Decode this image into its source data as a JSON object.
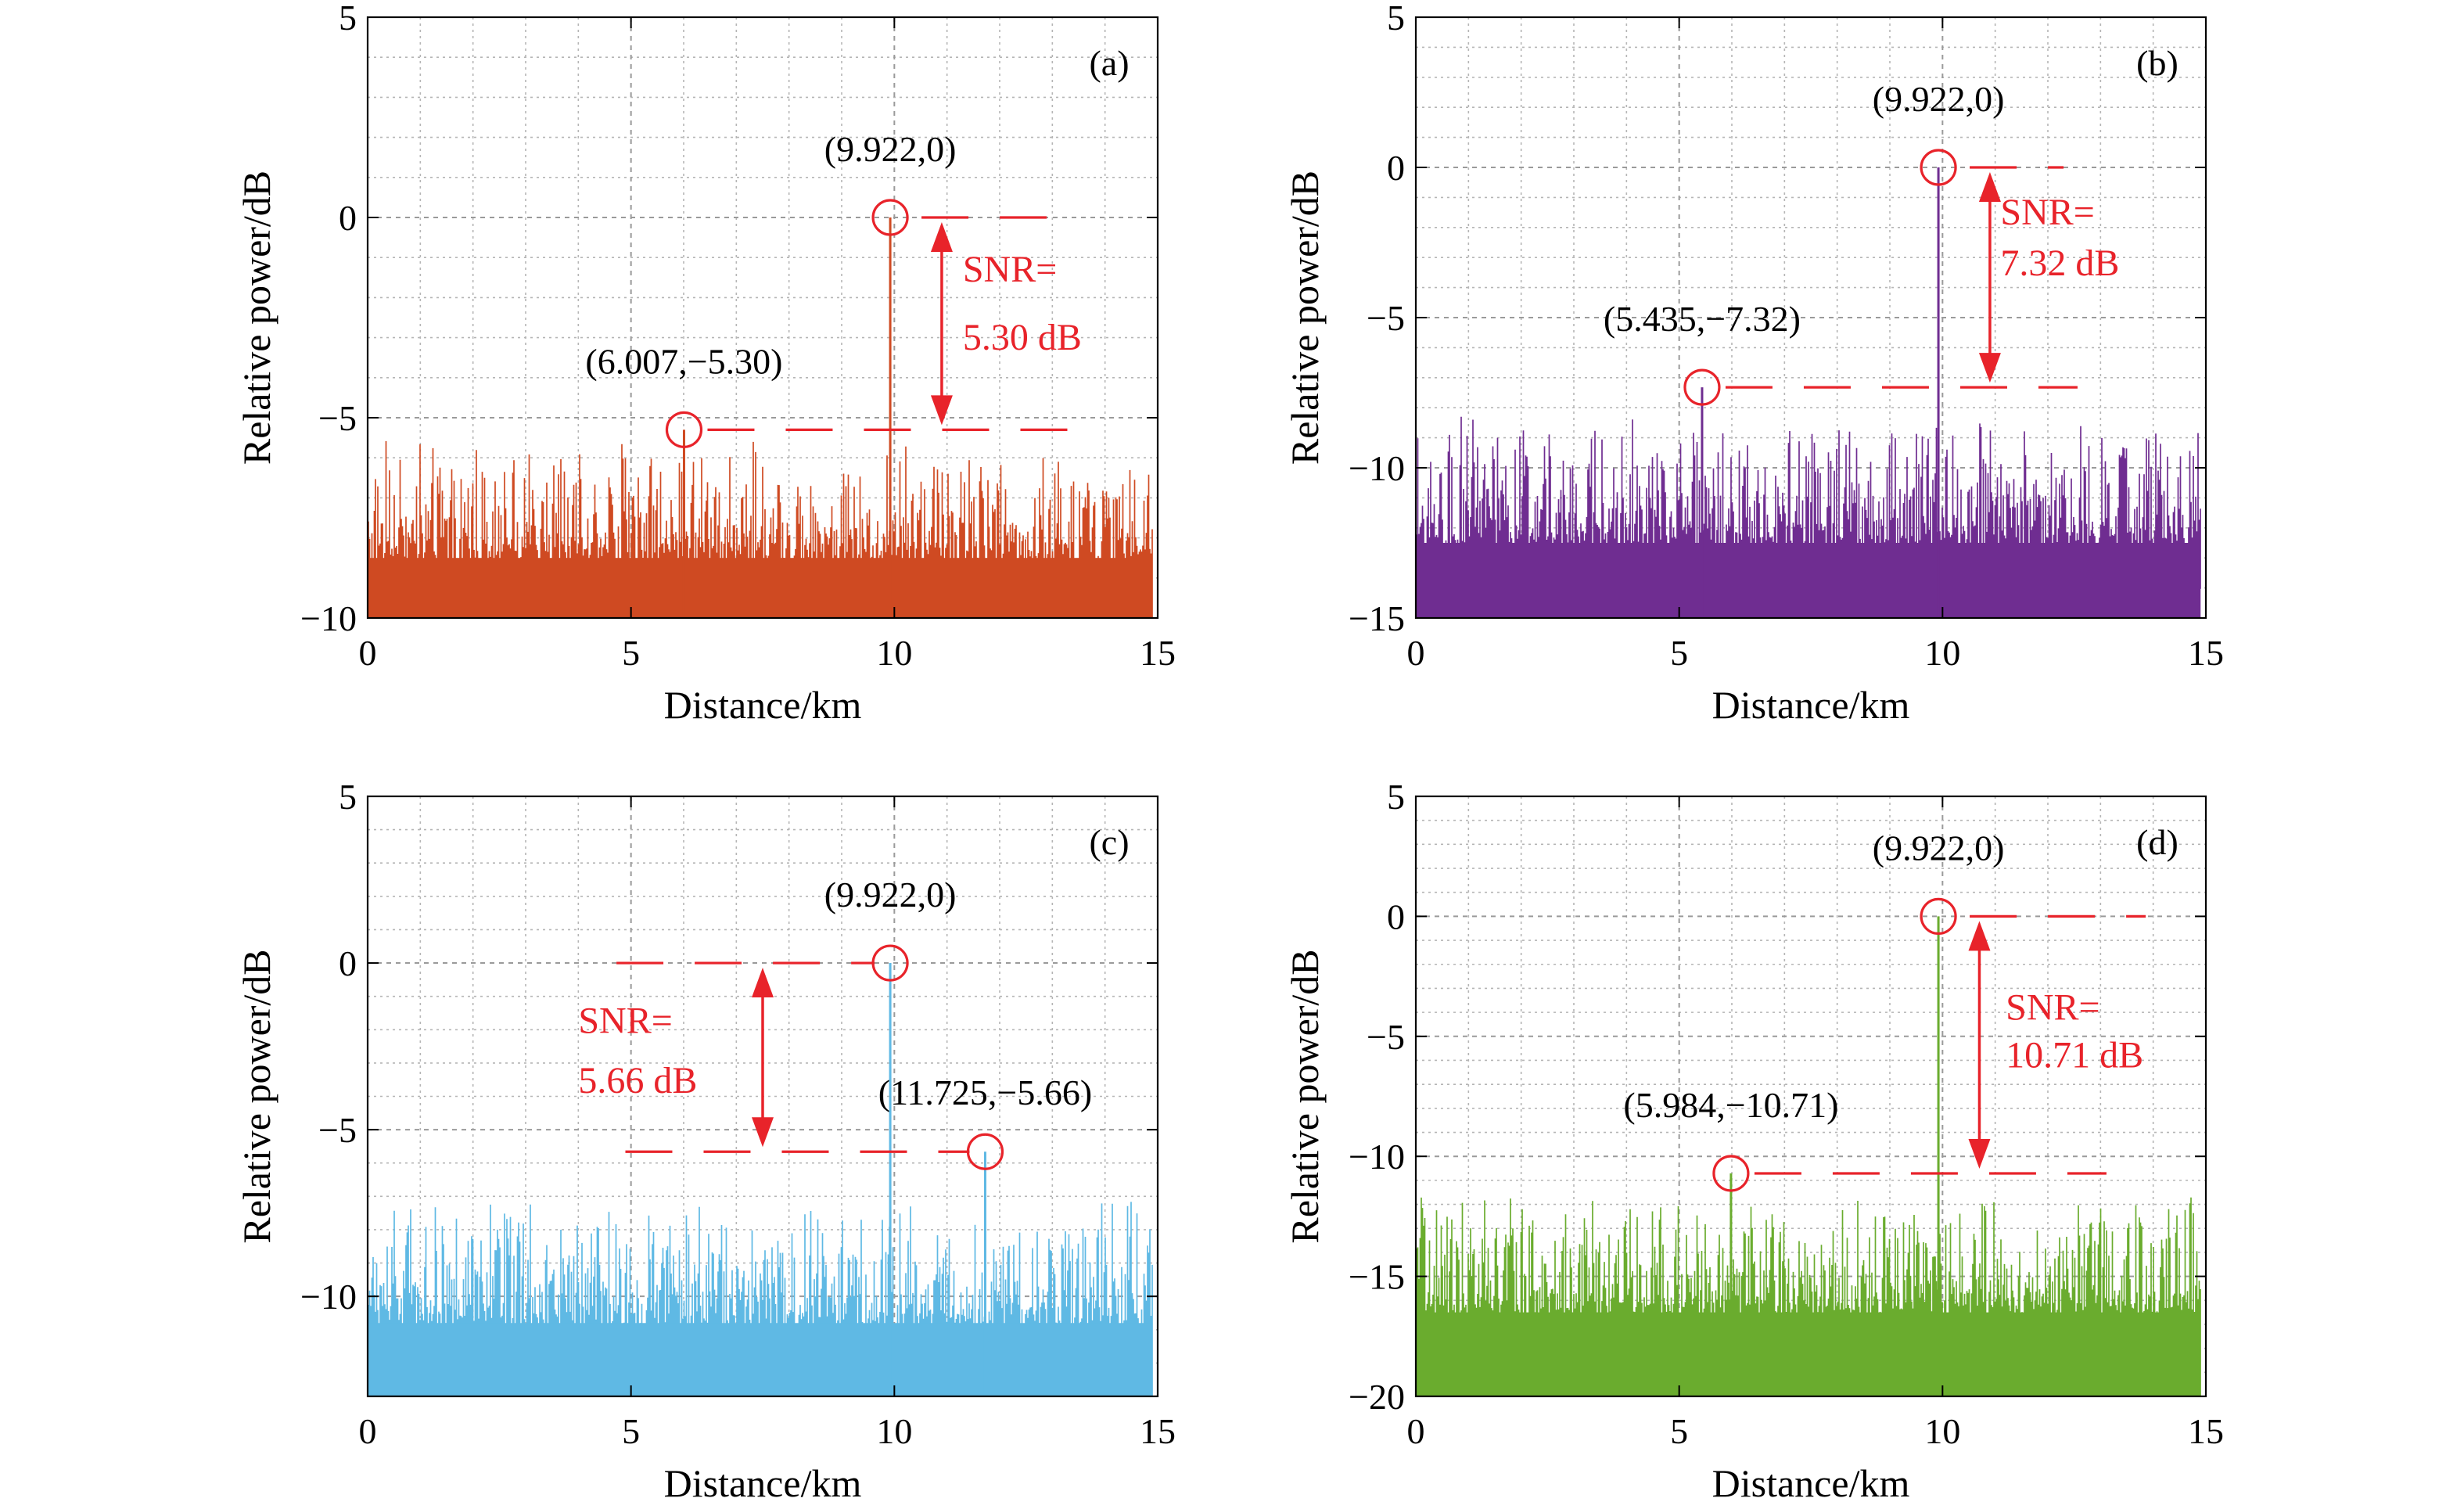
{
  "chart_data": [
    {
      "panel_label": "(a)",
      "type": "bar",
      "xlabel": "Distance/km",
      "ylabel": "Relative power/dB",
      "xlim": [
        0,
        15
      ],
      "ylim": [
        -10,
        5
      ],
      "xticks": [
        0,
        5,
        10,
        15
      ],
      "yticks": [
        -10,
        -5,
        0,
        5
      ],
      "grid": true,
      "color": "#cf4a22",
      "x_range_km": [
        0,
        14.9
      ],
      "noise_floor_db": -10,
      "noise_peak_typical_db": [
        -8.5,
        -6.1
      ],
      "peaks": [
        {
          "x": 9.922,
          "y": 0,
          "label": "(9.922,0)"
        },
        {
          "x": 6.007,
          "y": -5.3,
          "label": "(6.007,−5.30)"
        }
      ],
      "snr_db": 5.3,
      "snr_text": [
        "SNR=",
        "5.30 dB"
      ]
    },
    {
      "panel_label": "(b)",
      "type": "bar",
      "xlabel": "Distance/km",
      "ylabel": "Relative power/dB",
      "xlim": [
        0,
        15
      ],
      "ylim": [
        -15,
        5
      ],
      "xticks": [
        0,
        5,
        10,
        15
      ],
      "yticks": [
        -15,
        -10,
        -5,
        0,
        5
      ],
      "grid": true,
      "color": "#6f2d91",
      "x_range_km": [
        0,
        14.9
      ],
      "noise_floor_db": -15,
      "noise_peak_typical_db": [
        -12.5,
        -8.8
      ],
      "peaks": [
        {
          "x": 9.922,
          "y": 0,
          "label": "(9.922,0)"
        },
        {
          "x": 5.435,
          "y": -7.32,
          "label": "(5.435,−7.32)"
        }
      ],
      "snr_db": 7.32,
      "snr_text": [
        "SNR=",
        "7.32 dB"
      ]
    },
    {
      "panel_label": "(c)",
      "type": "bar",
      "xlabel": "Distance/km",
      "ylabel": "Relative power/dB",
      "xlim": [
        0,
        15
      ],
      "ylim": [
        -13,
        5
      ],
      "xticks": [
        0,
        5,
        10,
        15
      ],
      "yticks": [
        -10,
        -5,
        0,
        5
      ],
      "grid": true,
      "color": "#5fb9e4",
      "x_range_km": [
        0,
        14.9
      ],
      "noise_floor_db": -13,
      "noise_peak_typical_db": [
        -10.8,
        -7.7
      ],
      "peaks": [
        {
          "x": 9.922,
          "y": 0,
          "label": "(9.922,0)"
        },
        {
          "x": 11.725,
          "y": -5.66,
          "label": "(11.725,−5.66)"
        }
      ],
      "snr_db": 5.66,
      "snr_text": [
        "SNR=",
        "5.66 dB"
      ]
    },
    {
      "panel_label": "(d)",
      "type": "bar",
      "xlabel": "Distance/km",
      "ylabel": "Relative power/dB",
      "xlim": [
        0,
        15
      ],
      "ylim": [
        -20,
        5
      ],
      "xticks": [
        0,
        5,
        10,
        15
      ],
      "yticks": [
        -20,
        -15,
        -10,
        -5,
        0,
        5
      ],
      "grid": true,
      "color": "#6aac2e",
      "x_range_km": [
        0,
        14.9
      ],
      "noise_floor_db": -20,
      "noise_peak_typical_db": [
        -16.5,
        -12.2
      ],
      "peaks": [
        {
          "x": 9.922,
          "y": 0,
          "label": "(9.922,0)"
        },
        {
          "x": 5.984,
          "y": -10.71,
          "label": "(5.984,−10.71)"
        }
      ],
      "snr_db": 10.71,
      "snr_text": [
        "SNR=",
        "10.71 dB"
      ]
    }
  ],
  "annotation_color": "#e8232a"
}
